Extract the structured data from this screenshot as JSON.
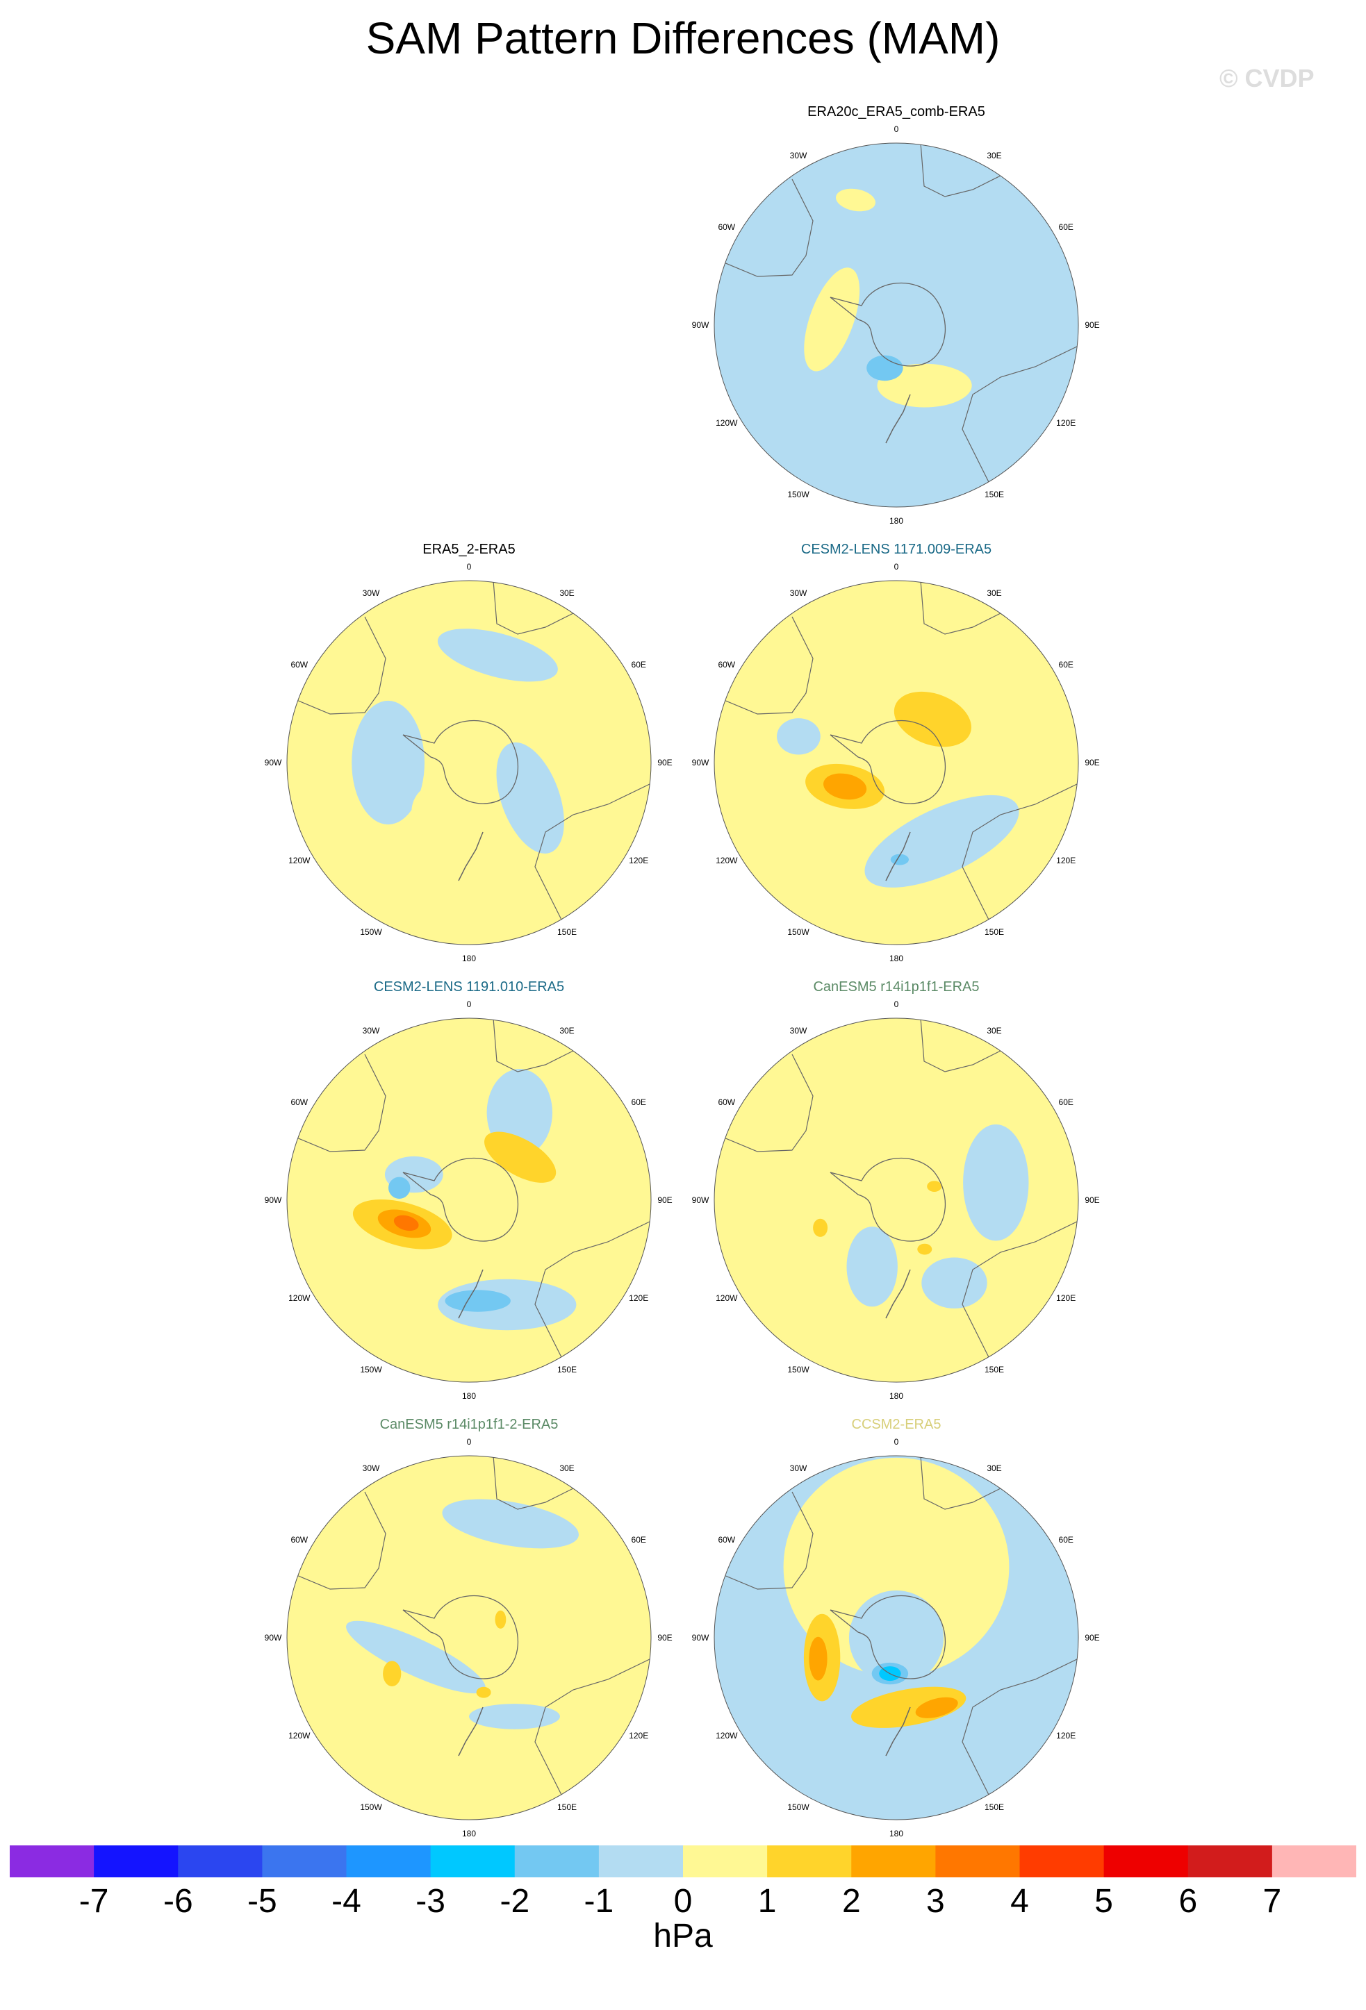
{
  "header": {
    "title": "SAM Pattern Differences (MAM)",
    "watermark": "© CVDP"
  },
  "map_common": {
    "projection": "south-polar-stereographic",
    "lon_labels": [
      "0",
      "30E",
      "60E",
      "90E",
      "120E",
      "150E",
      "180",
      "150W",
      "120W",
      "90W",
      "60W",
      "30W"
    ],
    "background_color": "#b3dcf2"
  },
  "panels": [
    {
      "id": "era20c",
      "title": "ERA20c_ERA5_comb-ERA5",
      "title_color": "#000000",
      "background": "#b3dcf2",
      "contours": [
        {
          "level": "0-1",
          "color": "#fff894",
          "lon": -85,
          "lat": -58,
          "rx": 0.12,
          "ry": 0.3,
          "rot": 20
        },
        {
          "level": "0-1",
          "color": "#fff894",
          "lon": 155,
          "lat": -57,
          "rx": 0.26,
          "ry": 0.12,
          "rot": 0
        },
        {
          "level": "0-1",
          "color": "#fff894",
          "lon": -18,
          "lat": -25,
          "rx": 0.11,
          "ry": 0.06,
          "rot": 10
        },
        {
          "level": "-1--2",
          "color": "#73c8f2",
          "lon": -165,
          "lat": -68,
          "rx": 0.1,
          "ry": 0.07,
          "rot": 0
        }
      ]
    },
    {
      "id": "era5_2",
      "title": "ERA5_2-ERA5",
      "title_color": "#000000",
      "background": "#fff894",
      "contours": [
        {
          "level": "-1-0",
          "color": "#b3dcf2",
          "lon": 15,
          "lat": -35,
          "rx": 0.34,
          "ry": 0.12,
          "rot": 15
        },
        {
          "level": "-1-0",
          "color": "#b3dcf2",
          "lon": -90,
          "lat": -50,
          "rx": 0.2,
          "ry": 0.34,
          "rot": 0
        },
        {
          "level": "-1-0",
          "color": "#b3dcf2",
          "lon": 120,
          "lat": -55,
          "rx": 0.16,
          "ry": 0.32,
          "rot": -20
        },
        {
          "level": "0-1",
          "color": "#fff894",
          "lon": -150,
          "lat": -62,
          "rx": 0.16,
          "ry": 0.16,
          "rot": 0
        }
      ]
    },
    {
      "id": "cesm2_1171",
      "title": "CESM2-LENS 1171.009-ERA5",
      "title_color": "#1b6a87",
      "background": "#fff894",
      "contours": [
        {
          "level": "-1-0",
          "color": "#b3dcf2",
          "lon": 150,
          "lat": -45,
          "rx": 0.46,
          "ry": 0.18,
          "rot": -25
        },
        {
          "level": "-1-0",
          "color": "#b3dcf2",
          "lon": -75,
          "lat": -40,
          "rx": 0.12,
          "ry": 0.1,
          "rot": 0
        },
        {
          "level": "1-2",
          "color": "#ffd42b",
          "lon": 40,
          "lat": -62,
          "rx": 0.22,
          "ry": 0.14,
          "rot": 20
        },
        {
          "level": "1-2",
          "color": "#ffd42b",
          "lon": -115,
          "lat": -62,
          "rx": 0.22,
          "ry": 0.12,
          "rot": 10
        },
        {
          "level": "2-3",
          "color": "#ffa500",
          "lon": -115,
          "lat": -62,
          "rx": 0.12,
          "ry": 0.07,
          "rot": 10
        },
        {
          "level": "-1--2",
          "color": "#73c8f2",
          "lon": 178,
          "lat": -42,
          "rx": 0.05,
          "ry": 0.03,
          "rot": 0
        }
      ]
    },
    {
      "id": "cesm2_1191",
      "title": "CESM2-LENS 1191.010-ERA5",
      "title_color": "#1b6a87",
      "background": "#fff894",
      "contours": [
        {
          "level": "-1-0",
          "color": "#b3dcf2",
          "lon": 30,
          "lat": -40,
          "rx": 0.18,
          "ry": 0.24,
          "rot": 0
        },
        {
          "level": "-1-0",
          "color": "#b3dcf2",
          "lon": 160,
          "lat": -35,
          "rx": 0.38,
          "ry": 0.14,
          "rot": 0
        },
        {
          "level": "-1-0",
          "color": "#b3dcf2",
          "lon": -65,
          "lat": -60,
          "rx": 0.16,
          "ry": 0.1,
          "rot": 0
        },
        {
          "level": "1-2",
          "color": "#ffd42b",
          "lon": 50,
          "lat": -57,
          "rx": 0.22,
          "ry": 0.1,
          "rot": 30
        },
        {
          "level": "1-2",
          "color": "#ffd42b",
          "lon": -110,
          "lat": -55,
          "rx": 0.28,
          "ry": 0.12,
          "rot": 15
        },
        {
          "level": "2-3",
          "color": "#ffa500",
          "lon": -110,
          "lat": -56,
          "rx": 0.15,
          "ry": 0.07,
          "rot": 15
        },
        {
          "level": "3-4",
          "color": "#ff7700",
          "lon": -110,
          "lat": -57,
          "rx": 0.07,
          "ry": 0.04,
          "rot": 15
        },
        {
          "level": "-1--2",
          "color": "#73c8f2",
          "lon": 175,
          "lat": -40,
          "rx": 0.18,
          "ry": 0.06,
          "rot": 0
        },
        {
          "level": "-1--2",
          "color": "#73c8f2",
          "lon": -80,
          "lat": -55,
          "rx": 0.06,
          "ry": 0.06,
          "rot": 0
        }
      ]
    },
    {
      "id": "canesm5_r14",
      "title": "CanESM5 r14i1p1f1-ERA5",
      "title_color": "#5b8a66",
      "background": "#fff894",
      "contours": [
        {
          "level": "-1-0",
          "color": "#b3dcf2",
          "lon": 80,
          "lat": -40,
          "rx": 0.18,
          "ry": 0.32,
          "rot": 0
        },
        {
          "level": "-1-0",
          "color": "#b3dcf2",
          "lon": -160,
          "lat": -55,
          "rx": 0.14,
          "ry": 0.22,
          "rot": 0
        },
        {
          "level": "-1-0",
          "color": "#b3dcf2",
          "lon": 145,
          "lat": -40,
          "rx": 0.18,
          "ry": 0.14,
          "rot": 0
        },
        {
          "level": "1-2",
          "color": "#ffd42b",
          "lon": 70,
          "lat": -70,
          "rx": 0.04,
          "ry": 0.03,
          "rot": 0
        },
        {
          "level": "1-2",
          "color": "#ffd42b",
          "lon": -110,
          "lat": -50,
          "rx": 0.04,
          "ry": 0.05,
          "rot": 0
        },
        {
          "level": "1-2",
          "color": "#ffd42b",
          "lon": 150,
          "lat": -62,
          "rx": 0.04,
          "ry": 0.03,
          "rot": 0
        }
      ]
    },
    {
      "id": "canesm5_r14_2",
      "title": "CanESM5 r14i1p1f1-2-ERA5",
      "title_color": "#5b8a66",
      "background": "#fff894",
      "contours": [
        {
          "level": "-1-0",
          "color": "#b3dcf2",
          "lon": 20,
          "lat": -30,
          "rx": 0.38,
          "ry": 0.12,
          "rot": 10
        },
        {
          "level": "-1-0",
          "color": "#b3dcf2",
          "lon": -110,
          "lat": -62,
          "rx": 0.42,
          "ry": 0.1,
          "rot": 25
        },
        {
          "level": "-1-0",
          "color": "#b3dcf2",
          "lon": 150,
          "lat": -45,
          "rx": 0.25,
          "ry": 0.07,
          "rot": 0
        },
        {
          "level": "1-2",
          "color": "#ffd42b",
          "lon": -115,
          "lat": -48,
          "rx": 0.05,
          "ry": 0.07,
          "rot": 0
        },
        {
          "level": "1-2",
          "color": "#ffd42b",
          "lon": 60,
          "lat": -72,
          "rx": 0.03,
          "ry": 0.05,
          "rot": 0
        },
        {
          "level": "1-2",
          "color": "#ffd42b",
          "lon": 165,
          "lat": -62,
          "rx": 0.04,
          "ry": 0.03,
          "rot": 0
        }
      ]
    },
    {
      "id": "ccsm2",
      "title": "CCSM2-ERA5",
      "title_color": "#d8cf7a",
      "background": "#b3dcf2",
      "contours": [
        {
          "level": "0-1",
          "color": "#fff894",
          "lon": 0,
          "lat": -55,
          "rx": 0.62,
          "ry": 0.6,
          "rot": 0
        },
        {
          "level": "-1-0",
          "color": "#b3dcf2",
          "lon": 0,
          "lat": -90,
          "rx": 0.26,
          "ry": 0.26,
          "rot": 0
        },
        {
          "level": "1-2",
          "color": "#ffd42b",
          "lon": -105,
          "lat": -52,
          "rx": 0.1,
          "ry": 0.24,
          "rot": 0
        },
        {
          "level": "1-2",
          "color": "#ffd42b",
          "lon": 170,
          "lat": -55,
          "rx": 0.32,
          "ry": 0.1,
          "rot": -10
        },
        {
          "level": "2-3",
          "color": "#ffa500",
          "lon": -105,
          "lat": -50,
          "rx": 0.05,
          "ry": 0.12,
          "rot": 0
        },
        {
          "level": "2-3",
          "color": "#ffa500",
          "lon": 150,
          "lat": -50,
          "rx": 0.12,
          "ry": 0.05,
          "rot": -15
        },
        {
          "level": "-1--2",
          "color": "#73c8f2",
          "lon": -170,
          "lat": -72,
          "rx": 0.1,
          "ry": 0.06,
          "rot": 0
        },
        {
          "level": "-2--3",
          "color": "#00c8ff",
          "lon": -170,
          "lat": -72,
          "rx": 0.06,
          "ry": 0.04,
          "rot": 0
        }
      ]
    }
  ],
  "colorbar": {
    "unit": "hPa",
    "labels": [
      "-7",
      "-6",
      "-5",
      "-4",
      "-3",
      "-2",
      "-1",
      "0",
      "1",
      "2",
      "3",
      "4",
      "5",
      "6",
      "7"
    ],
    "colors": [
      "#8b2be2",
      "#1414ff",
      "#2b46f0",
      "#3b75ef",
      "#1e96ff",
      "#00c8ff",
      "#73c8f2",
      "#b3dcf2",
      "#fff894",
      "#ffd42b",
      "#ffa500",
      "#ff7700",
      "#ff3c00",
      "#ee0000",
      "#d21c1c",
      "#ffb6b6"
    ]
  }
}
